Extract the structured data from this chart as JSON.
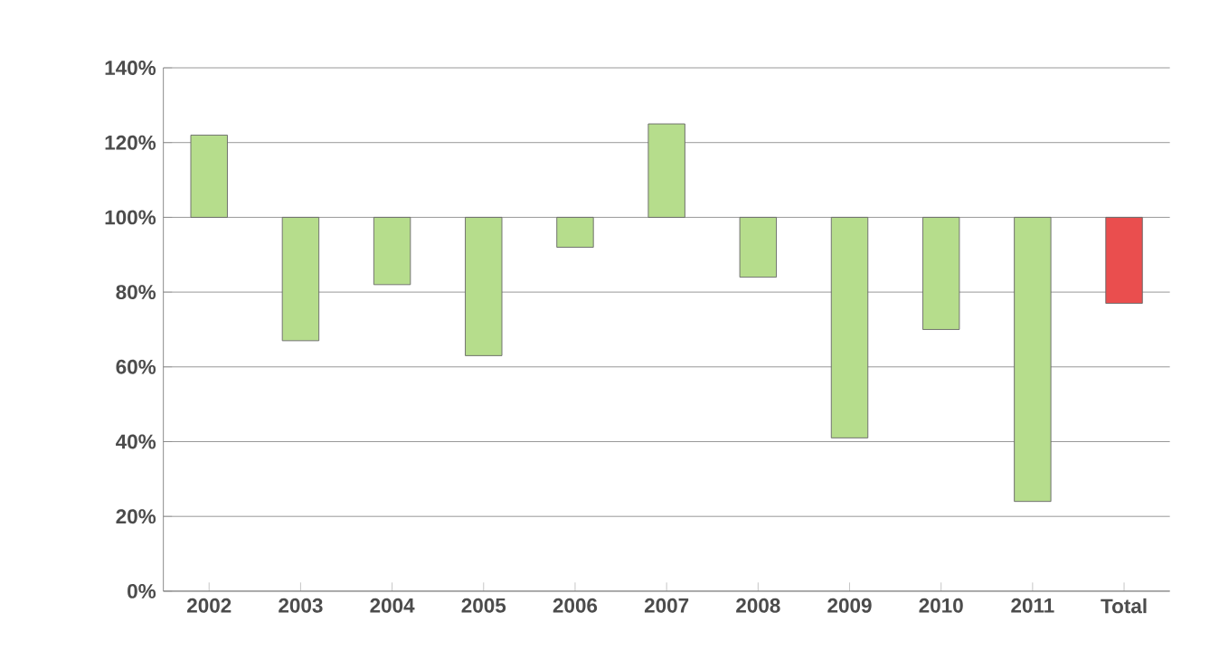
{
  "chart_data": {
    "type": "bar",
    "categories": [
      "2002",
      "2003",
      "2004",
      "2005",
      "2006",
      "2007",
      "2008",
      "2009",
      "2010",
      "2011",
      "Total"
    ],
    "base": [
      100,
      100,
      100,
      100,
      100,
      100,
      100,
      100,
      100,
      100,
      100
    ],
    "values": [
      22,
      -33,
      -18,
      -37,
      -8,
      25,
      -16,
      -59,
      -30,
      -76,
      -23
    ],
    "colors": [
      "#b6dd8c",
      "#b6dd8c",
      "#b6dd8c",
      "#b6dd8c",
      "#b6dd8c",
      "#b6dd8c",
      "#b6dd8c",
      "#b6dd8c",
      "#b6dd8c",
      "#b6dd8c",
      "#ea4e4e"
    ],
    "ylim": [
      0,
      140
    ],
    "yticks": [
      {
        "value": 0,
        "label": "0%"
      },
      {
        "value": 20,
        "label": "20%"
      },
      {
        "value": 40,
        "label": "40%"
      },
      {
        "value": 60,
        "label": "60%"
      },
      {
        "value": 80,
        "label": "80%"
      },
      {
        "value": 100,
        "label": "100%"
      },
      {
        "value": 120,
        "label": "120%"
      },
      {
        "value": 140,
        "label": "140%"
      }
    ],
    "grid": "y"
  }
}
